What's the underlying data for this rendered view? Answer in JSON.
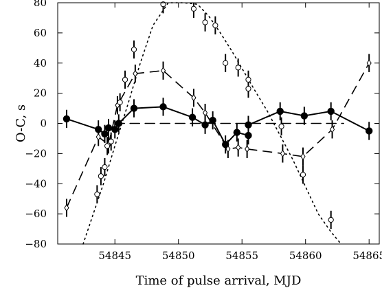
{
  "chart_data": {
    "type": "scatter",
    "xlabel": "Time of pulse arrival, MJD",
    "ylabel": "O-C, s",
    "xlim": [
      54840.5,
      54865.8
    ],
    "ylim": [
      -80,
      80
    ],
    "xticks": [
      54845,
      54850,
      54855,
      54860,
      54865
    ],
    "yticks": [
      -80,
      -60,
      -40,
      -20,
      0,
      20,
      40,
      60,
      80
    ],
    "grid": false,
    "legend": "none",
    "series": [
      {
        "marker": "filled-circle",
        "line": "solid",
        "points": [
          {
            "x": 54841.2,
            "y": 3,
            "err": 6
          },
          {
            "x": 54843.7,
            "y": -4,
            "err": 6
          },
          {
            "x": 54844.2,
            "y": -7,
            "err": 6
          },
          {
            "x": 54844.5,
            "y": -3,
            "err": 6
          },
          {
            "x": 54845.0,
            "y": -4,
            "err": 6
          },
          {
            "x": 54845.3,
            "y": 0,
            "err": 6
          },
          {
            "x": 54846.5,
            "y": 10,
            "err": 6
          },
          {
            "x": 54848.8,
            "y": 11,
            "err": 6
          },
          {
            "x": 54851.1,
            "y": 4,
            "err": 6
          },
          {
            "x": 54852.1,
            "y": -1,
            "err": 6
          },
          {
            "x": 54852.7,
            "y": 2,
            "err": 6
          },
          {
            "x": 54853.7,
            "y": -14,
            "err": 6
          },
          {
            "x": 54854.6,
            "y": -6,
            "err": 6
          },
          {
            "x": 54855.5,
            "y": -8,
            "err": 6
          },
          {
            "x": 54855.5,
            "y": -1,
            "err": 6
          },
          {
            "x": 54858.0,
            "y": 8,
            "err": 6
          },
          {
            "x": 54859.9,
            "y": 5,
            "err": 6
          },
          {
            "x": 54862.0,
            "y": 8,
            "err": 6
          },
          {
            "x": 54865.0,
            "y": -5,
            "err": 6
          }
        ]
      },
      {
        "marker": "open-diamond",
        "line": "dashed",
        "points": [
          {
            "x": 54841.2,
            "y": -56,
            "err": 6
          },
          {
            "x": 54843.7,
            "y": -9,
            "err": 6
          },
          {
            "x": 54844.5,
            "y": -14,
            "err": 6
          },
          {
            "x": 54845.2,
            "y": 12,
            "err": 6
          },
          {
            "x": 54846.6,
            "y": 33,
            "err": 6
          },
          {
            "x": 54848.8,
            "y": 35,
            "err": 6
          },
          {
            "x": 54851.2,
            "y": 17,
            "err": 6
          },
          {
            "x": 54852.1,
            "y": 7,
            "err": 6
          },
          {
            "x": 54853.9,
            "y": -17,
            "err": 6
          },
          {
            "x": 54854.7,
            "y": -16,
            "err": 6
          },
          {
            "x": 54855.4,
            "y": -17,
            "err": 6
          },
          {
            "x": 54858.2,
            "y": -20,
            "err": 6
          },
          {
            "x": 54859.8,
            "y": -22,
            "err": 6
          },
          {
            "x": 54862.1,
            "y": -4,
            "err": 6
          },
          {
            "x": 54865.0,
            "y": 40,
            "err": 6
          }
        ]
      },
      {
        "marker": "open-circle",
        "line": "none",
        "points": [
          {
            "x": 54843.6,
            "y": -47,
            "err": 6
          },
          {
            "x": 54843.9,
            "y": -35,
            "err": 6
          },
          {
            "x": 54844.2,
            "y": -29,
            "err": 6
          },
          {
            "x": 54844.4,
            "y": -15,
            "err": 6
          },
          {
            "x": 54844.7,
            "y": -12,
            "err": 6
          },
          {
            "x": 54845.4,
            "y": 14,
            "err": 6
          },
          {
            "x": 54845.8,
            "y": 29,
            "err": 6
          },
          {
            "x": 54846.5,
            "y": 49,
            "err": 6
          },
          {
            "x": 54848.8,
            "y": 79,
            "err": 6
          },
          {
            "x": 54851.2,
            "y": 76,
            "err": 6
          },
          {
            "x": 54852.1,
            "y": 67,
            "err": 6
          },
          {
            "x": 54852.9,
            "y": 65,
            "err": 6
          },
          {
            "x": 54853.7,
            "y": 40,
            "err": 6
          },
          {
            "x": 54854.7,
            "y": 37,
            "err": 6
          },
          {
            "x": 54855.5,
            "y": 29,
            "err": 6
          },
          {
            "x": 54855.5,
            "y": 23,
            "err": 6
          },
          {
            "x": 54858.1,
            "y": -2,
            "err": 6
          },
          {
            "x": 54859.8,
            "y": -34,
            "err": 6
          },
          {
            "x": 54862.0,
            "y": -64,
            "err": 6
          }
        ]
      }
    ],
    "model_curves": [
      {
        "line": "dotted",
        "x": [
          54842.5,
          54843.3,
          54844.1,
          54845.0,
          54846.0,
          54847.0,
          54848.0,
          54849.2,
          54850.4,
          54851.5,
          54852.4,
          54853.3,
          54854.2,
          54855.1,
          54856.0,
          54857.0,
          54858.0,
          54859.0,
          54860.0,
          54861.0,
          54862.0,
          54862.8
        ],
        "y": [
          -80,
          -60,
          -40,
          -15,
          12,
          40,
          65,
          80,
          80,
          79,
          71,
          60,
          48,
          35,
          22,
          8,
          -8,
          -24,
          -42,
          -60,
          -72,
          -80
        ]
      },
      {
        "line": "dashed",
        "x": [
          54845.0,
          54863.0
        ],
        "y": [
          0,
          0
        ]
      }
    ]
  }
}
